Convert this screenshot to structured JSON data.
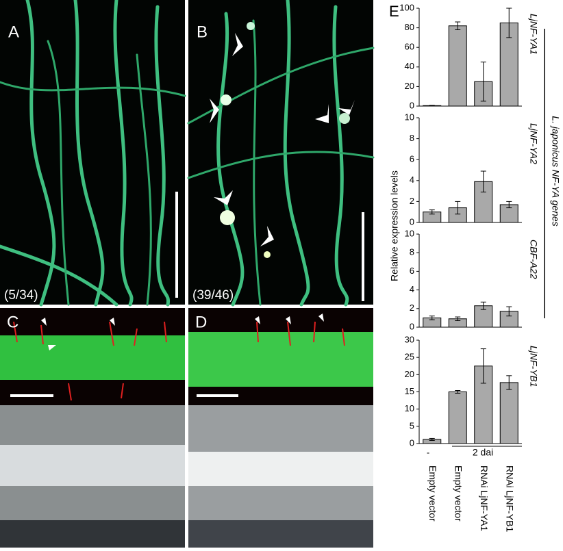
{
  "figure": {
    "panels": [
      "A",
      "B",
      "C",
      "D",
      "E"
    ],
    "ratios": [
      "(5/34)",
      "(39/46)"
    ],
    "ylabel": "Relative expression levels",
    "group_label": "L. japonicus NF-YA genes",
    "conditions": [
      "-",
      "2 dai"
    ],
    "categories": [
      "Empty vector",
      "Empty vector",
      "RNAi LjNF-YA1",
      "RNAi LjNF-YB1"
    ]
  },
  "chart_data": [
    {
      "type": "bar",
      "title": "LjNF-YA1",
      "color": "#a9a9a9",
      "values": [
        0.5,
        82,
        25,
        85
      ],
      "errors": [
        0.3,
        4,
        20,
        15
      ],
      "ylim": [
        0,
        100
      ],
      "yticks": [
        0,
        20,
        40,
        60,
        80,
        100
      ]
    },
    {
      "type": "bar",
      "title": "LjNF-YA2",
      "color": "#a9a9a9",
      "values": [
        1.0,
        1.4,
        3.9,
        1.7
      ],
      "errors": [
        0.2,
        0.6,
        1.0,
        0.3
      ],
      "ylim": [
        0,
        10
      ],
      "yticks": [
        0,
        2,
        4,
        6,
        8,
        10
      ]
    },
    {
      "type": "bar",
      "title": "CBF-A22",
      "color": "#a9a9a9",
      "values": [
        1.0,
        0.9,
        2.3,
        1.7
      ],
      "errors": [
        0.2,
        0.2,
        0.4,
        0.5
      ],
      "ylim": [
        0,
        10
      ],
      "yticks": [
        0,
        2,
        4,
        6,
        8,
        10
      ]
    },
    {
      "type": "bar",
      "title": "LjNF-YB1",
      "color": "#a9a9a9",
      "values": [
        1.2,
        15,
        22.5,
        17.7
      ],
      "errors": [
        0.3,
        0.4,
        5,
        2
      ],
      "ylim": [
        0,
        30
      ],
      "yticks": [
        0,
        5,
        10,
        15,
        20,
        25,
        30
      ]
    }
  ]
}
